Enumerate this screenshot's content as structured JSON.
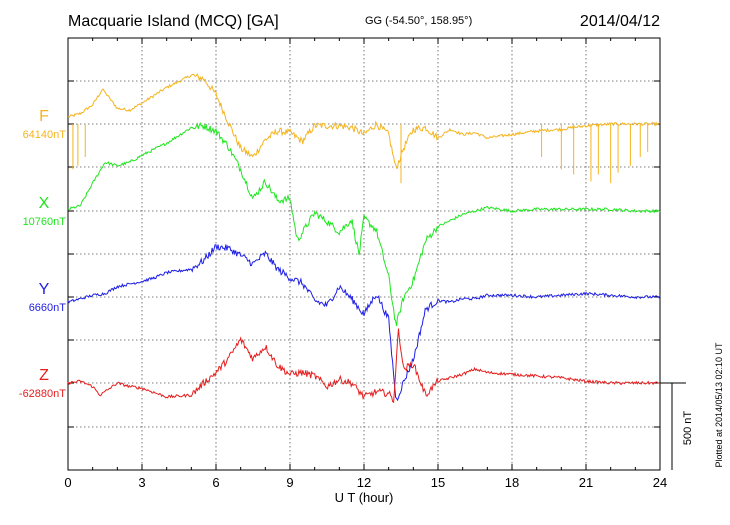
{
  "header": {
    "station": "Macquarie Island (MCQ)  [GA]",
    "coords": "GG (-54.50°, 158.95°)",
    "date": "2014/04/12"
  },
  "footer": {
    "plotted": "Plotted at 2014/05/13 02:10 UT"
  },
  "chart_data": {
    "type": "line",
    "title": "Macquarie Island (MCQ)  [GA]",
    "xlabel": "U T (hour)",
    "ylabel": "",
    "xlim": [
      0,
      24
    ],
    "x_ticks": [
      0,
      3,
      6,
      9,
      12,
      15,
      18,
      21,
      24
    ],
    "x_tick_labels": [
      "0",
      "3",
      "6",
      "9",
      "12",
      "15",
      "18",
      "21",
      "24"
    ],
    "grid": true,
    "scale_bar": {
      "label": "500 nT",
      "value": 500
    },
    "series": [
      {
        "name": "F",
        "baseline_label": "64140nT",
        "baseline": 64140,
        "color": "#F5B41E",
        "points": [
          [
            0,
            64180
          ],
          [
            0.5,
            64200
          ],
          [
            1,
            64250
          ],
          [
            1.4,
            64340
          ],
          [
            2,
            64230
          ],
          [
            2.5,
            64220
          ],
          [
            3,
            64260
          ],
          [
            4,
            64350
          ],
          [
            5,
            64420
          ],
          [
            5.5,
            64400
          ],
          [
            6,
            64310
          ],
          [
            6.5,
            64150
          ],
          [
            7,
            64000
          ],
          [
            7.5,
            63950
          ],
          [
            8,
            64050
          ],
          [
            8.5,
            64100
          ],
          [
            9,
            64090
          ],
          [
            9.5,
            64040
          ],
          [
            10,
            64130
          ],
          [
            11,
            64130
          ],
          [
            11.5,
            64120
          ],
          [
            12,
            64080
          ],
          [
            12.5,
            64140
          ],
          [
            13,
            64080
          ],
          [
            13.3,
            63880
          ],
          [
            13.6,
            64000
          ],
          [
            14,
            64110
          ],
          [
            14.5,
            64120
          ],
          [
            15,
            64060
          ],
          [
            15.5,
            64110
          ],
          [
            16,
            64080
          ],
          [
            16.5,
            64090
          ],
          [
            17,
            64060
          ],
          [
            18,
            64080
          ],
          [
            19,
            64100
          ],
          [
            20,
            64110
          ],
          [
            21,
            64130
          ],
          [
            22,
            64140
          ],
          [
            23,
            64140
          ],
          [
            24,
            64140
          ]
        ],
        "spikes": [
          [
            0.2,
            63880
          ],
          [
            0.4,
            63900
          ],
          [
            0.7,
            63950
          ],
          [
            13.5,
            63800
          ],
          [
            19.2,
            63950
          ],
          [
            20,
            63880
          ],
          [
            20.5,
            63850
          ],
          [
            21.2,
            63810
          ],
          [
            21.5,
            63850
          ],
          [
            22,
            63800
          ],
          [
            22.3,
            63860
          ],
          [
            22.8,
            63900
          ],
          [
            23.2,
            63950
          ],
          [
            23.5,
            63980
          ]
        ]
      },
      {
        "name": "X",
        "baseline_label": "10760nT",
        "baseline": 10760,
        "color": "#1EE61E",
        "points": [
          [
            0,
            10770
          ],
          [
            0.5,
            10790
          ],
          [
            1,
            10920
          ],
          [
            1.5,
            11040
          ],
          [
            2,
            11020
          ],
          [
            2.5,
            11040
          ],
          [
            3,
            11080
          ],
          [
            4,
            11150
          ],
          [
            5,
            11240
          ],
          [
            5.5,
            11250
          ],
          [
            6,
            11220
          ],
          [
            6.5,
            11130
          ],
          [
            7,
            11000
          ],
          [
            7.5,
            10830
          ],
          [
            8,
            10930
          ],
          [
            8.5,
            10820
          ],
          [
            9,
            10830
          ],
          [
            9.3,
            10590
          ],
          [
            10,
            10750
          ],
          [
            10.5,
            10700
          ],
          [
            11,
            10640
          ],
          [
            11.5,
            10710
          ],
          [
            11.8,
            10510
          ],
          [
            12,
            10720
          ],
          [
            12.5,
            10650
          ],
          [
            13,
            10380
          ],
          [
            13.3,
            10100
          ],
          [
            13.6,
            10260
          ],
          [
            14,
            10360
          ],
          [
            14.5,
            10590
          ],
          [
            15,
            10670
          ],
          [
            16,
            10740
          ],
          [
            17,
            10780
          ],
          [
            18,
            10760
          ],
          [
            19,
            10770
          ],
          [
            20,
            10770
          ],
          [
            21,
            10770
          ],
          [
            22,
            10770
          ],
          [
            23,
            10760
          ],
          [
            24,
            10760
          ]
        ]
      },
      {
        "name": "Y",
        "baseline_label": "6660nT",
        "baseline": 6660,
        "color": "#1E1EE6",
        "points": [
          [
            0,
            6630
          ],
          [
            0.5,
            6650
          ],
          [
            1,
            6670
          ],
          [
            1.5,
            6680
          ],
          [
            2,
            6720
          ],
          [
            3,
            6750
          ],
          [
            3.5,
            6770
          ],
          [
            4,
            6800
          ],
          [
            4.5,
            6810
          ],
          [
            5,
            6820
          ],
          [
            5.5,
            6870
          ],
          [
            6,
            6950
          ],
          [
            6.5,
            6940
          ],
          [
            7,
            6900
          ],
          [
            7.5,
            6850
          ],
          [
            8,
            6910
          ],
          [
            8.5,
            6820
          ],
          [
            9,
            6770
          ],
          [
            9.5,
            6740
          ],
          [
            10,
            6640
          ],
          [
            10.5,
            6610
          ],
          [
            11,
            6720
          ],
          [
            11.5,
            6650
          ],
          [
            12,
            6560
          ],
          [
            12.5,
            6680
          ],
          [
            13,
            6530
          ],
          [
            13.3,
            6060
          ],
          [
            13.6,
            6170
          ],
          [
            14,
            6300
          ],
          [
            14.5,
            6590
          ],
          [
            15,
            6640
          ],
          [
            15.5,
            6630
          ],
          [
            16,
            6650
          ],
          [
            16.5,
            6650
          ],
          [
            17,
            6670
          ],
          [
            18,
            6670
          ],
          [
            19,
            6660
          ],
          [
            20,
            6670
          ],
          [
            21,
            6680
          ],
          [
            22,
            6670
          ],
          [
            23,
            6660
          ],
          [
            24,
            6660
          ]
        ]
      },
      {
        "name": "Z",
        "baseline_label": "-62880nT",
        "baseline": -62880,
        "color": "#E61E1E",
        "points": [
          [
            0,
            -62880
          ],
          [
            0.5,
            -62870
          ],
          [
            1,
            -62900
          ],
          [
            1.3,
            -62950
          ],
          [
            2,
            -62880
          ],
          [
            2.5,
            -62900
          ],
          [
            3,
            -62910
          ],
          [
            4,
            -62960
          ],
          [
            5,
            -62950
          ],
          [
            5.5,
            -62880
          ],
          [
            6,
            -62820
          ],
          [
            6.5,
            -62740
          ],
          [
            7,
            -62630
          ],
          [
            7.5,
            -62740
          ],
          [
            8,
            -62670
          ],
          [
            8.5,
            -62780
          ],
          [
            9,
            -62830
          ],
          [
            9.5,
            -62820
          ],
          [
            10,
            -62840
          ],
          [
            10.5,
            -62900
          ],
          [
            11,
            -62860
          ],
          [
            11.5,
            -62880
          ],
          [
            12,
            -62960
          ],
          [
            12.5,
            -62930
          ],
          [
            13,
            -62940
          ],
          [
            13.2,
            -62980
          ],
          [
            13.4,
            -62570
          ],
          [
            13.6,
            -62800
          ],
          [
            14,
            -62770
          ],
          [
            14.5,
            -62950
          ],
          [
            15,
            -62870
          ],
          [
            15.5,
            -62850
          ],
          [
            16,
            -62830
          ],
          [
            16.5,
            -62800
          ],
          [
            17,
            -62820
          ],
          [
            18,
            -62830
          ],
          [
            19,
            -62840
          ],
          [
            20,
            -62850
          ],
          [
            21,
            -62870
          ],
          [
            22,
            -62880
          ],
          [
            23,
            -62880
          ],
          [
            24,
            -62880
          ]
        ]
      }
    ]
  }
}
